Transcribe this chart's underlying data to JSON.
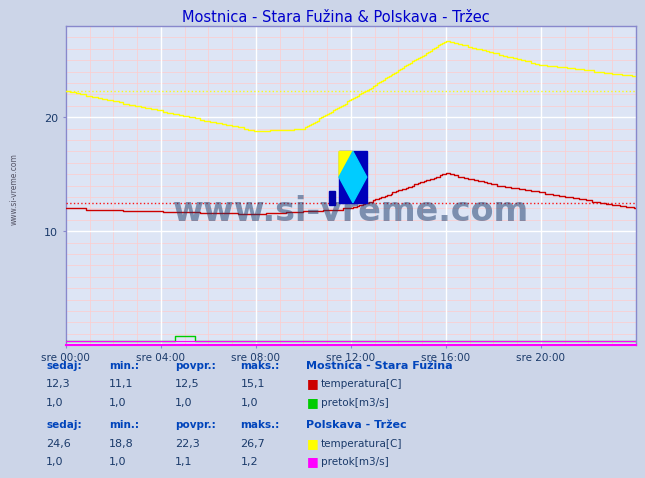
{
  "title": "Mostnica - Stara Fužina & Polskava - Tržec",
  "title_color": "#0000cc",
  "bg_color": "#ccd5e8",
  "plot_bg_color": "#dde5f5",
  "grid_major_color": "#ffffff",
  "grid_minor_color": "#ffcccc",
  "xlim": [
    0,
    288
  ],
  "ylim": [
    0,
    28
  ],
  "yticks": [
    10,
    20
  ],
  "xtick_labels": [
    "sre 00:00",
    "sre 04:00",
    "sre 08:00",
    "sre 12:00",
    "sre 16:00",
    "sre 20:00"
  ],
  "xtick_positions": [
    0,
    48,
    96,
    144,
    192,
    240
  ],
  "dashed_red_y": 12.5,
  "dashed_yellow_y": 22.3,
  "station1_name": "Mostnica - Stara Fužina",
  "station2_name": "Polskava - Tržec",
  "table1": {
    "headers": [
      "sedaj:",
      "min.:",
      "povpr.:",
      "maks.:"
    ],
    "temp": [
      12.3,
      11.1,
      12.5,
      15.1
    ],
    "flow": [
      1.0,
      1.0,
      1.0,
      1.0
    ]
  },
  "table2": {
    "headers": [
      "sedaj:",
      "min.:",
      "povpr.:",
      "maks.:"
    ],
    "temp": [
      24.6,
      18.8,
      22.3,
      26.7
    ],
    "flow": [
      1.0,
      1.0,
      1.1,
      1.2
    ]
  },
  "watermark": "www.si-vreme.com",
  "watermark_color": "#1a3a6a",
  "color_temp1": "#cc0000",
  "color_flow1": "#00cc00",
  "color_temp2": "#ffff00",
  "color_flow2": "#ff00ff",
  "left_label": "www.si-vreme.com",
  "spine_color": "#8888cc",
  "bottom_spine_color": "#ff00ff",
  "right_arrow_color": "#ff0000"
}
